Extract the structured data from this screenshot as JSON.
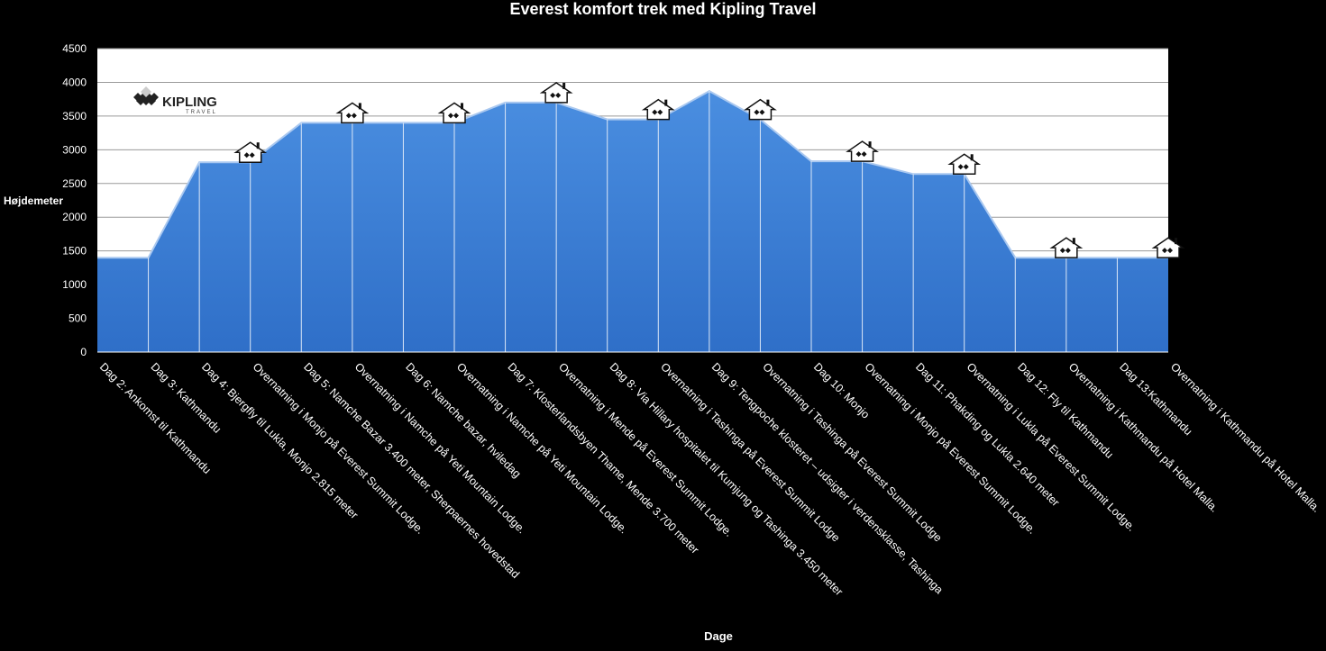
{
  "chart_data": {
    "type": "area",
    "title": "Everest komfort trek med Kipling Travel",
    "xlabel": "Dage",
    "ylabel": "Højdemeter",
    "ylim": [
      0,
      4500
    ],
    "yticks": [
      0,
      500,
      1000,
      1500,
      2000,
      2500,
      3000,
      3500,
      4000,
      4500
    ],
    "grid": true,
    "fill_color": "#3f7fd4",
    "categories": [
      "Dag 2: Ankomst til Kathmandu",
      "Dag 3: Kathmandu",
      "Dag 4: Bjergfly til Lukla, Monjo 2.815 meter",
      "Overnatning i Monjo på Everest Summit Lodge.",
      "Dag 5: Namche Bazar 3.400 meter, Sherpaernes hovedstad",
      "Overnatning i Namche på Yeti Mountain Lodge.",
      "Dag 6: Namche bazar, hviledag",
      "Overnatning i Namche på Yeti Mountain Lodge.",
      "Dag 7: Klosterlandsbyen Thame, Mende 3.700 meter",
      "Overnatning i Mende på Everest Summit Lodge.",
      "Dag 8: Via Hillary hospitalet til Kumjung og Tashinga 3.450 meter",
      "Overnatning i Tashinga på Everest Summit Lodge",
      "Dag 9: Tengpoche klosteret – udsigter i verdensklasse, Tashinga",
      "Overnatning i Tashinga på Everest Summit Lodge",
      "Dag 10: Monjo",
      "Overnatning i Monjo på Everest Summit Lodge.",
      "Dag 11: Phakding og Lukla 2.640 meter",
      "Overnatning i Lukla på Everest Summit Lodge.",
      "Dag 12: Fly til Kathmandu",
      "Overnatning i Kathmandu på Hotel Malla.",
      "Dag 13:Kathmandu",
      "Overnatning i Kathmandu på Hotel Malla."
    ],
    "values": [
      1400,
      1400,
      2815,
      2815,
      3400,
      3400,
      3400,
      3400,
      3700,
      3700,
      3450,
      3450,
      3870,
      3450,
      2830,
      2830,
      2640,
      2640,
      1400,
      1400,
      1400,
      1400
    ],
    "lodge_markers": [
      3,
      5,
      7,
      9,
      11,
      13,
      15,
      17,
      19,
      21
    ]
  },
  "logo": {
    "text": "KIPLING",
    "subtext": "TRAVEL"
  }
}
